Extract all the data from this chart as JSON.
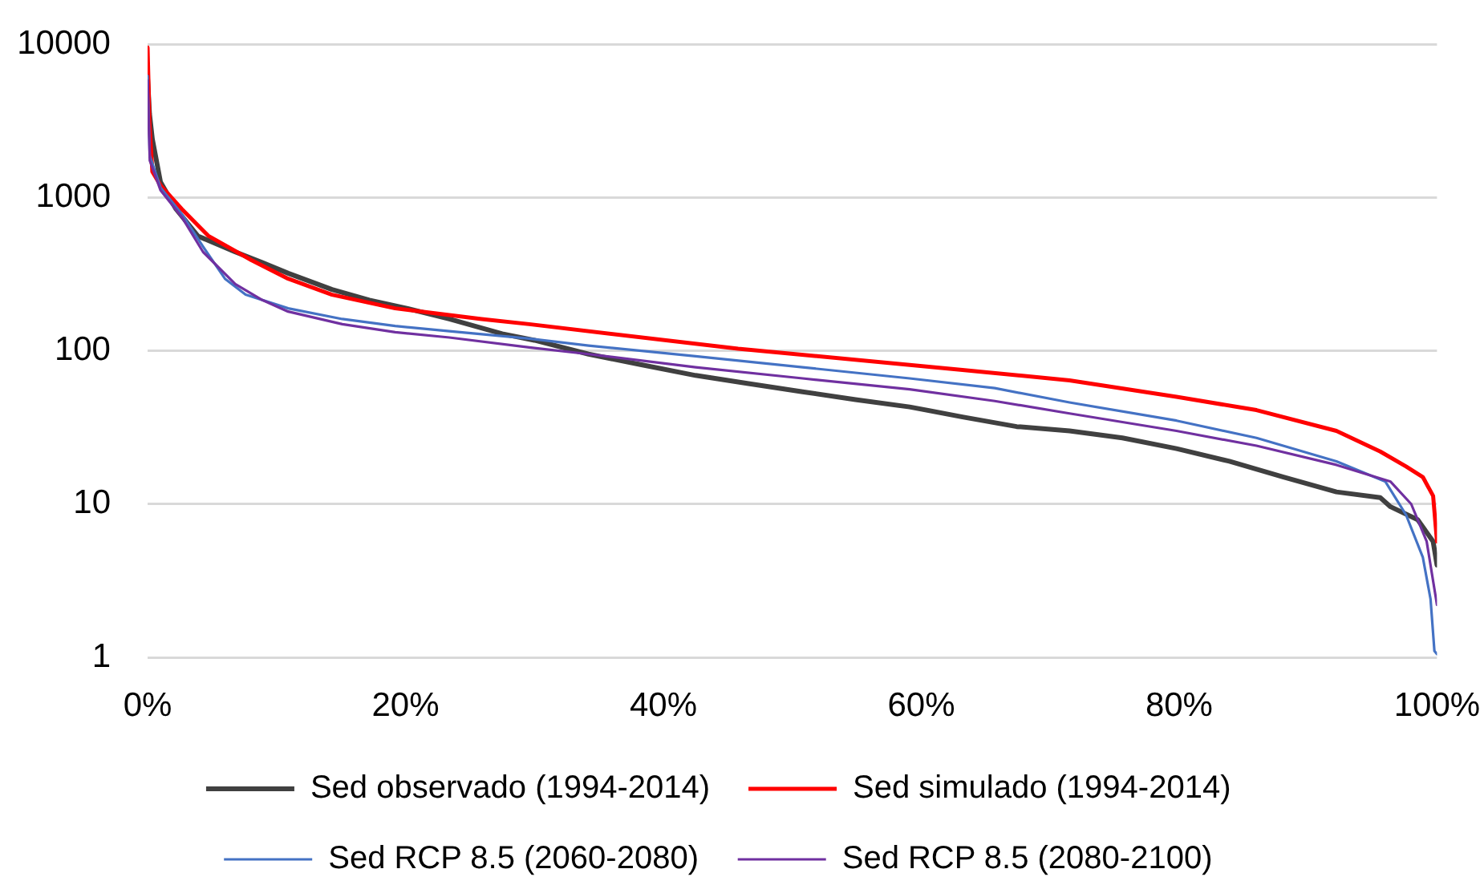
{
  "chart_data": {
    "type": "line",
    "xlim": [
      0,
      100
    ],
    "xticks": [
      {
        "value": 0,
        "label": "0%"
      },
      {
        "value": 20,
        "label": "20%"
      },
      {
        "value": 40,
        "label": "40%"
      },
      {
        "value": 60,
        "label": "60%"
      },
      {
        "value": 80,
        "label": "80%"
      },
      {
        "value": 100,
        "label": "100%"
      }
    ],
    "ylim": [
      1,
      10000
    ],
    "yticks": [
      1,
      10,
      100,
      1000,
      10000
    ],
    "log": "y",
    "grid": "y",
    "legend": "bottom",
    "marker": "none",
    "line_style": "solid",
    "series": [
      {
        "name": "Sed observado (1994-2014)",
        "color": "#404040",
        "x": [
          0,
          0.15,
          0.37,
          1.0,
          2.2,
          3.9,
          6.8,
          8.9,
          10.9,
          14.3,
          17.2,
          20.1,
          23.4,
          27.5,
          30,
          34.2,
          38.3,
          42.5,
          46.6,
          50.8,
          54.9,
          59.1,
          63.2,
          67.4,
          71.5,
          75.6,
          79.8,
          83.9,
          88.1,
          92.2,
          95.6,
          96.4,
          98.5,
          99.7,
          100
        ],
        "values": [
          6000,
          3500,
          2400,
          1260,
          840,
          560,
          441,
          376,
          320,
          251,
          214,
          189,
          161,
          129,
          117,
          95,
          81,
          69,
          61,
          54,
          48,
          43,
          37,
          32,
          30,
          27,
          23,
          19,
          15,
          12,
          11,
          9.6,
          7.9,
          5.7,
          4
        ]
      },
      {
        "name": "Sed simulado (1994-2014)",
        "color": "#ff0000",
        "x": [
          0,
          0.15,
          0.37,
          1.0,
          2.65,
          4.7,
          8.05,
          10.9,
          14.3,
          19.2,
          25.9,
          29.6,
          45.8,
          63.2,
          71.5,
          79.8,
          86,
          92.2,
          95.6,
          97.6,
          98.9,
          99.7,
          100
        ],
        "values": [
          9500,
          3000,
          1470,
          1200,
          840,
          562,
          390,
          295,
          232,
          189,
          161,
          149,
          103,
          75,
          64,
          50,
          41,
          30,
          22,
          17.6,
          15,
          11.3,
          5.7
        ]
      },
      {
        "name": "Sed RCP 8.5 (2060-2080)",
        "color": "#4472c4",
        "x": [
          0,
          0.17,
          1,
          2.65,
          4.3,
          6,
          7.6,
          10.9,
          15.1,
          19.2,
          23.4,
          29.6,
          34.2,
          42.5,
          50.8,
          59.1,
          65.7,
          71.5,
          79.8,
          86,
          92.2,
          96,
          97.6,
          98.9,
          99.5,
          99.8,
          100
        ],
        "values": [
          6200,
          1870,
          1160,
          780,
          478,
          295,
          232,
          189,
          161,
          145,
          134,
          120,
          108,
          92,
          78,
          66,
          57,
          46,
          35,
          27,
          19,
          14,
          8.5,
          4.5,
          2.4,
          1.1,
          1.05
        ]
      },
      {
        "name": "Sed RCP 8.5 (2080-2100)",
        "color": "#7030a0",
        "x": [
          0,
          0.17,
          1,
          2.65,
          4.3,
          6.8,
          8.9,
          10.9,
          15.1,
          19.2,
          23.4,
          29.6,
          34.2,
          42.5,
          50.8,
          59.1,
          65.7,
          71.5,
          79.8,
          86,
          92.2,
          96.4,
          98,
          99.2,
          100
        ],
        "values": [
          5800,
          1740,
          1115,
          745,
          441,
          272,
          214,
          180,
          149,
          132,
          122,
          105,
          95,
          78,
          66,
          56,
          47,
          39,
          30,
          24,
          18,
          14,
          10,
          5.7,
          2.2
        ]
      }
    ]
  }
}
